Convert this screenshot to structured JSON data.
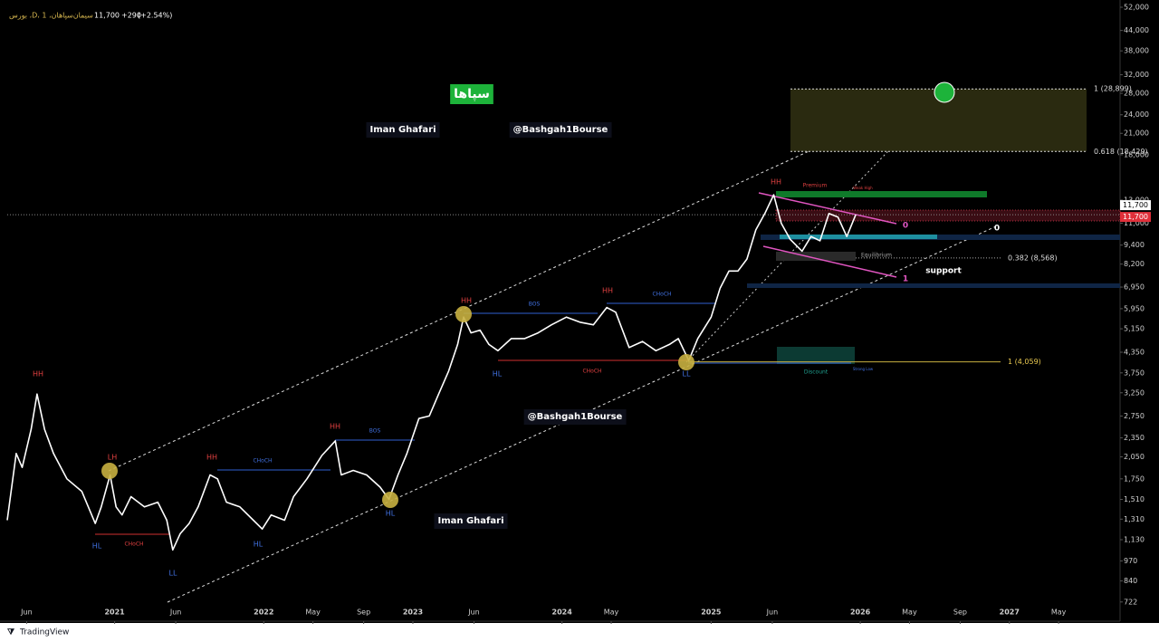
{
  "header": {
    "symbol": "بورس ،D، سیمان‌سپاهان، 1",
    "last": "11,700",
    "change": "+290",
    "change_pct": "(+2.54%)"
  },
  "footer": "TradingView",
  "chart_data": {
    "type": "line",
    "x": [
      2020.28,
      2020.34,
      2020.38,
      2020.44,
      2020.48,
      2020.53,
      2020.59,
      2020.68,
      2020.78,
      2020.87,
      2020.91,
      2020.97,
      2021.01,
      2021.05,
      2021.11,
      2021.2,
      2021.29,
      2021.35,
      2021.39,
      2021.44,
      2021.5,
      2021.56,
      2021.64,
      2021.69,
      2021.75,
      2021.84,
      2021.93,
      2021.99,
      2022.05,
      2022.14,
      2022.2,
      2022.29,
      2022.39,
      2022.48,
      2022.52,
      2022.6,
      2022.69,
      2022.78,
      2022.84,
      2022.9,
      2022.96,
      2023.04,
      2023.11,
      2023.17,
      2023.24,
      2023.3,
      2023.34,
      2023.39,
      2023.45,
      2023.51,
      2023.57,
      2023.66,
      2023.75,
      2023.84,
      2023.93,
      2024.03,
      2024.12,
      2024.21,
      2024.3,
      2024.36,
      2024.45,
      2024.54,
      2024.63,
      2024.72,
      2024.78,
      2024.85,
      2024.91,
      2025.0,
      2025.06,
      2025.12,
      2025.18,
      2025.24,
      2025.3,
      2025.36,
      2025.42,
      2025.47,
      2025.53,
      2025.61,
      2025.67,
      2025.73,
      2025.79,
      2025.85,
      2025.91,
      2025.97
    ],
    "series": [
      {
        "color": "#ffffff",
        "values": [
          1300,
          2100,
          1900,
          2500,
          3220,
          2500,
          2100,
          1750,
          1600,
          1270,
          1430,
          1800,
          1430,
          1350,
          1540,
          1430,
          1480,
          1300,
          1050,
          1180,
          1270,
          1430,
          1800,
          1750,
          1480,
          1430,
          1300,
          1220,
          1350,
          1300,
          1540,
          1750,
          2070,
          2300,
          1800,
          1860,
          1800,
          1650,
          1510,
          1800,
          2100,
          2700,
          2750,
          3200,
          3800,
          4600,
          5600,
          5000,
          5100,
          4600,
          4400,
          4800,
          4800,
          5000,
          5300,
          5600,
          5400,
          5300,
          6000,
          5800,
          4500,
          4700,
          4400,
          4600,
          4800,
          4100,
          4800,
          5600,
          6900,
          7800,
          7800,
          8500,
          10500,
          11800,
          13500,
          11000,
          9800,
          9000,
          10000,
          9700,
          11800,
          11500,
          10000,
          11700
        ]
      }
    ],
    "ylim": [
      633,
      52000
    ],
    "log_y": true,
    "yticks": [
      {
        "value": 52000,
        "label": "52,000"
      },
      {
        "value": 44000,
        "label": "44,000"
      },
      {
        "value": 38000,
        "label": "38,000"
      },
      {
        "value": 32000,
        "label": "32,000"
      },
      {
        "value": 28000,
        "label": "28,000"
      },
      {
        "value": 24000,
        "label": "24,000"
      },
      {
        "value": 21000,
        "label": "21,000"
      },
      {
        "value": 18000,
        "label": "18,000"
      },
      {
        "value": 13000,
        "label": "13,000"
      },
      {
        "value": 11000,
        "label": "11,000"
      },
      {
        "value": 9400,
        "label": "9,400"
      },
      {
        "value": 8200,
        "label": "8,200"
      },
      {
        "value": 6950,
        "label": "6,950"
      },
      {
        "value": 5950,
        "label": "5,950"
      },
      {
        "value": 5150,
        "label": "5,150"
      },
      {
        "value": 4350,
        "label": "4,350"
      },
      {
        "value": 3750,
        "label": "3,750"
      },
      {
        "value": 3250,
        "label": "3,250"
      },
      {
        "value": 2750,
        "label": "2,750"
      },
      {
        "value": 2350,
        "label": "2,350"
      },
      {
        "value": 2050,
        "label": "2,050"
      },
      {
        "value": 1750,
        "label": "1,750"
      },
      {
        "value": 1510,
        "label": "1,510"
      },
      {
        "value": 1310,
        "label": "1,310"
      },
      {
        "value": 1130,
        "label": "1,130"
      },
      970,
      840,
      722
    ],
    "xlim": [
      2020.28,
      2027.73
    ],
    "xticks": [
      {
        "value": 2020.41,
        "label": "Jun"
      },
      2021,
      {
        "value": 2021.41,
        "label": "Jun"
      },
      2022,
      {
        "value": 2022.33,
        "label": "May"
      },
      {
        "value": 2022.67,
        "label": "Sep"
      },
      2023,
      {
        "value": 2023.41,
        "label": "Jun"
      },
      2024,
      {
        "value": 2024.33,
        "label": "May"
      },
      2025,
      {
        "value": 2025.41,
        "label": "Jun"
      },
      2026,
      {
        "value": 2026.33,
        "label": "May"
      },
      {
        "value": 2026.67,
        "label": "Sep"
      },
      2027,
      {
        "value": 2027.33,
        "label": "May"
      }
    ],
    "last_price": {
      "value": 11700,
      "label": "11,700"
    },
    "fib_levels": [
      {
        "value": 28899,
        "label": "1 (28,899)"
      },
      {
        "value": 18429,
        "label": "0.618 (18,429)"
      },
      {
        "value": 8568,
        "label": "0.382 (8,568)"
      },
      {
        "value": 4059,
        "label": "1 (4,059)"
      }
    ],
    "annotations": [
      "HH",
      "LH",
      "HL",
      "CHoCH",
      "LL",
      "HH",
      "CHoCH",
      "HL",
      "HH",
      "BOS",
      "HL",
      "HH",
      "BOS",
      "HL",
      "HH",
      "CHoCH",
      "CHoCH",
      "LL",
      "HH",
      "Premium",
      "Weak High",
      "Equilibrium",
      "Discount",
      "Strong Low",
      "support",
      "0",
      "1",
      "0"
    ],
    "watermarks": [
      "سپاها",
      "Iman Ghafari",
      "@Bashgah1Bourse",
      "@Bashgah1Bourse",
      "Iman Ghafari"
    ]
  }
}
